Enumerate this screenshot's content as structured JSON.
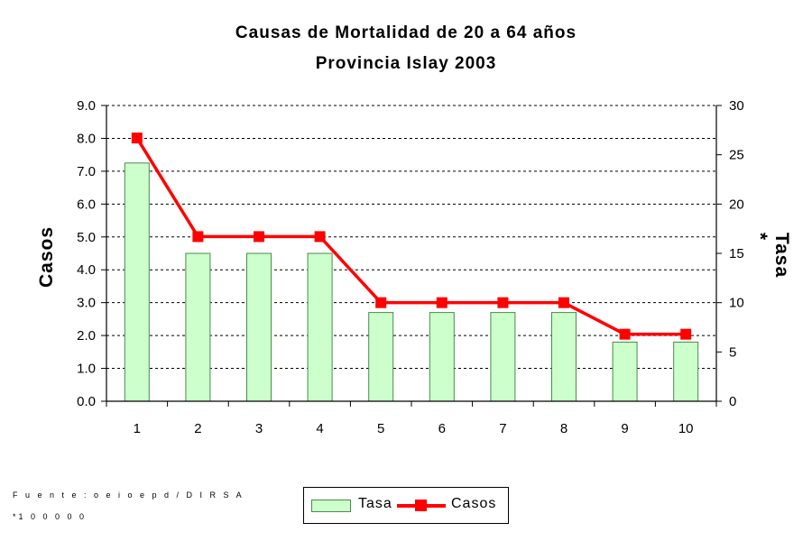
{
  "chart_data": {
    "type": "bar+line",
    "title": "Causas de Mortalidad de 20 a 64 años",
    "subtitle": "Provincia Islay 2003",
    "categories": [
      "1",
      "2",
      "3",
      "4",
      "5",
      "6",
      "7",
      "8",
      "9",
      "10"
    ],
    "ylabel_left": "Casos",
    "ylabel_right": "Tasa *",
    "ylim_left": [
      0,
      9
    ],
    "ylim_right": [
      0,
      30
    ],
    "yticks_left": [
      "0.0",
      "1.0",
      "2.0",
      "3.0",
      "4.0",
      "5.0",
      "6.0",
      "7.0",
      "8.0",
      "9.0"
    ],
    "yticks_right": [
      "0",
      "5",
      "10",
      "15",
      "20",
      "25",
      "30"
    ],
    "grid": true,
    "legend_position": "bottom-center",
    "series": [
      {
        "name": "Tasa",
        "type": "bar",
        "axis": "left",
        "color": "#ccffcc",
        "values": [
          7.25,
          4.5,
          4.5,
          4.5,
          2.7,
          2.7,
          2.7,
          2.7,
          1.8,
          1.8
        ]
      },
      {
        "name": "Casos",
        "type": "line",
        "axis": "right",
        "color": "#ff0000",
        "values": [
          26.7,
          16.7,
          16.7,
          16.7,
          10,
          10,
          10,
          10,
          6.8,
          6.8
        ]
      }
    ]
  },
  "footnotes": {
    "source": "F u e n t e : o e i o e p d / D I R S A",
    "rate_note": "*1 0 0 0 0 0"
  }
}
